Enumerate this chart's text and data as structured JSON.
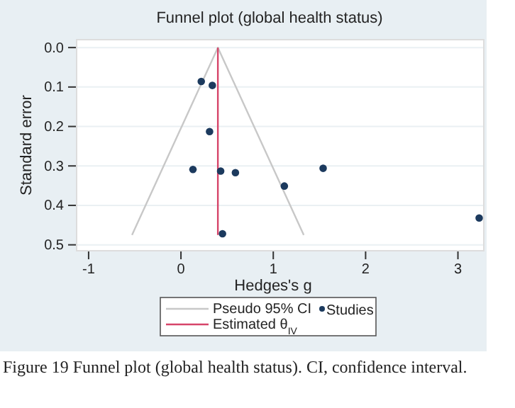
{
  "chart_data": {
    "type": "scatter",
    "title": "Funnel plot (global health status)",
    "xlabel": "Hedges's g",
    "ylabel": "Standard error",
    "xlim": [
      -1.13,
      3.28
    ],
    "xticks": [
      -1,
      0,
      1,
      2,
      3
    ],
    "ylim": [
      0.515,
      -0.02
    ],
    "yticks": [
      {
        "value": 0,
        "label": "0.0"
      },
      {
        "value": 0.1,
        "label": "0.1"
      },
      {
        "value": 0.2,
        "label": "0.2"
      },
      {
        "value": 0.3,
        "label": "0.3"
      },
      {
        "value": 0.4,
        "label": "0.4"
      },
      {
        "value": 0.5,
        "label": "0.5"
      }
    ],
    "grid": "y",
    "legend": "bottom",
    "marker": "circle",
    "series": [
      {
        "name": "Pseudo 95% CI",
        "type": "line",
        "color": "#c8c8c8",
        "x": [
          -0.53,
          0.4,
          1.33
        ],
        "values": [
          0.475,
          0,
          0.475
        ],
        "marker": "none"
      },
      {
        "name": "Estimated θ$_{IV}$",
        "type": "line",
        "color": "#d6456a",
        "x": [
          0.4,
          0.4
        ],
        "values": [
          0,
          0.475
        ],
        "marker": "none"
      },
      {
        "name": "Studies",
        "color": "#1c3a5e",
        "x": [
          0.22,
          0.34,
          0.31,
          0.13,
          0.43,
          0.59,
          1.12,
          1.54,
          3.23,
          0.45
        ],
        "values": [
          0.086,
          0.096,
          0.213,
          0.309,
          0.313,
          0.317,
          0.351,
          0.306,
          0.432,
          0.472
        ]
      }
    ],
    "annotations": [
      "Figure 19 Funnel plot (global health status). CI, confidence interval."
    ]
  }
}
